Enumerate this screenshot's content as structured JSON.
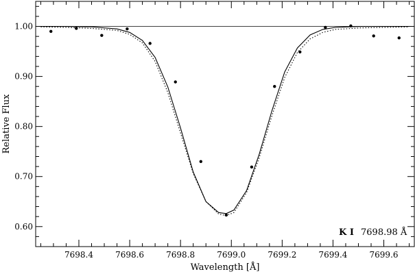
{
  "chart_data": {
    "type": "line",
    "xlabel": "Wavelength [Å]",
    "ylabel": "Relative Flux",
    "xlim": [
      7698.23,
      7699.72
    ],
    "ylim": [
      0.56,
      1.05
    ],
    "x_ticks": [
      7698.4,
      7698.6,
      7698.8,
      7699.0,
      7699.2,
      7699.4,
      7699.6
    ],
    "x_tick_labels": [
      "7698.4",
      "7698.6",
      "7698.8",
      "7699.0",
      "7699.2",
      "7699.4",
      "7699.6"
    ],
    "y_ticks": [
      0.6,
      0.7,
      0.8,
      0.9,
      1.0
    ],
    "y_tick_labels": [
      "0.60",
      "0.70",
      "0.80",
      "0.90",
      "1.00"
    ],
    "reference_line": {
      "y": 1.0
    },
    "series": [
      {
        "kind": "scatter",
        "x": [
          7698.29,
          7698.39,
          7698.49,
          7698.59,
          7698.68,
          7698.78,
          7698.88,
          7698.98,
          7699.08,
          7699.17,
          7699.27,
          7699.37,
          7699.47,
          7699.56,
          7699.66
        ],
        "y": [
          0.99,
          0.996,
          0.982,
          0.995,
          0.966,
          0.889,
          0.73,
          0.623,
          0.719,
          0.88,
          0.949,
          0.998,
          1.001,
          0.981,
          0.977
        ]
      },
      {
        "kind": "line",
        "style": "solid",
        "x": [
          7698.25,
          7698.35,
          7698.45,
          7698.55,
          7698.6,
          7698.65,
          7698.7,
          7698.75,
          7698.8,
          7698.85,
          7698.9,
          7698.95,
          7698.98,
          7699.01,
          7699.06,
          7699.11,
          7699.16,
          7699.21,
          7699.26,
          7699.31,
          7699.36,
          7699.41,
          7699.51,
          7699.61,
          7699.7
        ],
        "y": [
          1.0,
          1.0,
          0.999,
          0.995,
          0.988,
          0.972,
          0.938,
          0.879,
          0.797,
          0.709,
          0.65,
          0.628,
          0.626,
          0.633,
          0.672,
          0.745,
          0.832,
          0.909,
          0.957,
          0.983,
          0.994,
          0.998,
          1.0,
          1.0,
          1.0
        ]
      },
      {
        "kind": "line",
        "style": "dotted",
        "x": [
          7698.25,
          7698.35,
          7698.45,
          7698.55,
          7698.6,
          7698.65,
          7698.7,
          7698.75,
          7698.8,
          7698.85,
          7698.9,
          7698.95,
          7698.98,
          7699.01,
          7699.06,
          7699.11,
          7699.16,
          7699.21,
          7699.26,
          7699.31,
          7699.36,
          7699.41,
          7699.51,
          7699.61,
          7699.7
        ],
        "y": [
          0.999,
          0.998,
          0.996,
          0.992,
          0.984,
          0.967,
          0.93,
          0.868,
          0.787,
          0.706,
          0.65,
          0.625,
          0.622,
          0.628,
          0.668,
          0.738,
          0.822,
          0.898,
          0.948,
          0.975,
          0.988,
          0.994,
          0.997,
          0.998,
          0.999
        ]
      }
    ],
    "annotation": {
      "species": "K I",
      "wavelength": "7698.98 Å"
    }
  }
}
